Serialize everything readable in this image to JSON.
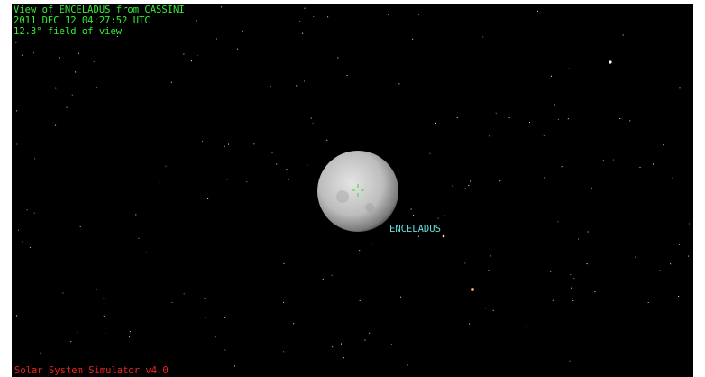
{
  "header": {
    "lines": [
      "View of ENCELADUS from CASSINI",
      "2011 DEC 12 04:27:52 UTC",
      "12.3° field of view"
    ]
  },
  "body_label": "ENCELADUS",
  "footer": "Solar System Simulator v4.0"
}
